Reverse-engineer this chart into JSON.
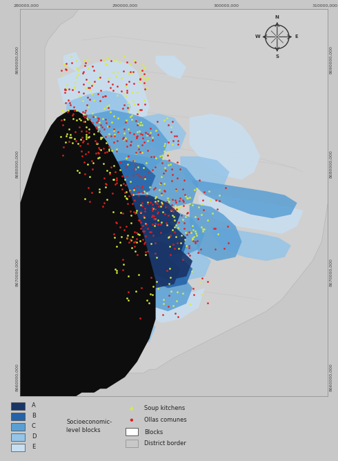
{
  "figsize": [
    4.9,
    6.68
  ],
  "dpi": 100,
  "fig_bg": "#c8c8c8",
  "map_bg": "#c8c8c8",
  "ocean_color": "#0d0d0d",
  "district_fill": "#d0d0d0",
  "district_edge": "#b0b0b0",
  "socio_colors": {
    "A": "#1a3568",
    "B": "#2563a8",
    "C": "#5a9fd4",
    "D": "#94c4e8",
    "E": "#c8dff2"
  },
  "soup_color": "#d8ee3a",
  "olla_color": "#e02020",
  "legend_bg": "#ffffff",
  "coord_top": [
    "280000,000",
    "290000,000",
    "300000,000",
    "310000,000"
  ],
  "coord_left": [
    "8690000,000",
    "8680000,000",
    "8670000,000",
    "8660000,000"
  ],
  "coord_right": [
    "8690000,000",
    "8680000,000",
    "8670000,000",
    "8660000,000"
  ]
}
